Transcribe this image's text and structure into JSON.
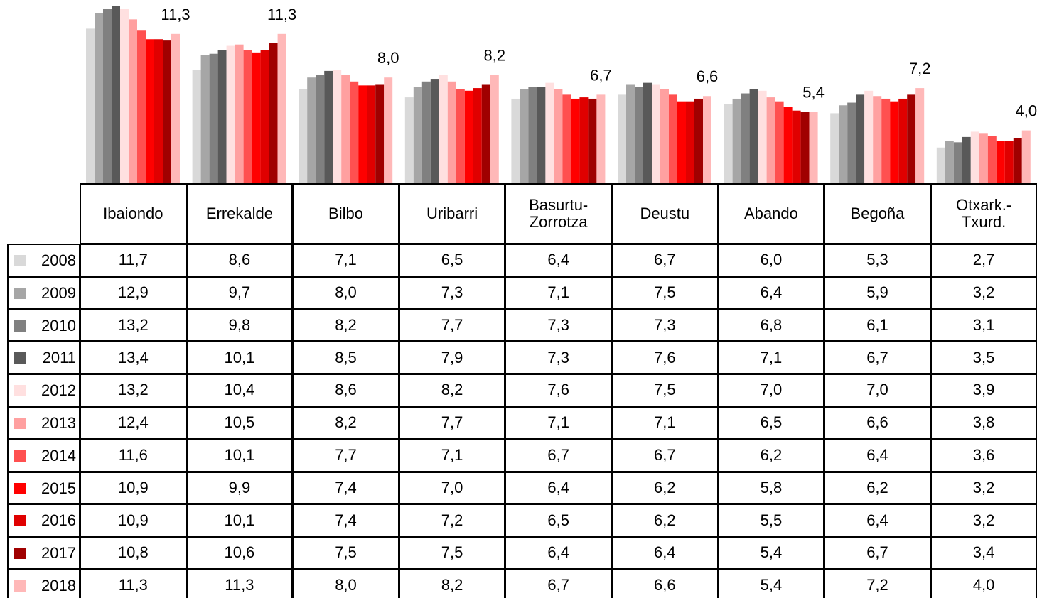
{
  "chart_data": {
    "type": "bar",
    "categories": [
      "Ibaiondo",
      "Errekalde",
      "Bilbo",
      "Uribarri",
      "Basurtu-\nZorrotza",
      "Deustu",
      "Abando",
      "Begoña",
      "Otxark.-\nTxurd."
    ],
    "series": [
      {
        "name": "2008",
        "color": "#d9d9d9",
        "values": [
          11.7,
          8.6,
          7.1,
          6.5,
          6.4,
          6.7,
          6.0,
          5.3,
          2.7
        ],
        "value_labels": [
          "11,7",
          "8,6",
          "7,1",
          "6,5",
          "6,4",
          "6,7",
          "6,0",
          "5,3",
          "2,7"
        ]
      },
      {
        "name": "2009",
        "color": "#a6a6a6",
        "values": [
          12.9,
          9.7,
          8.0,
          7.3,
          7.1,
          7.5,
          6.4,
          5.9,
          3.2
        ],
        "value_labels": [
          "12,9",
          "9,7",
          "8,0",
          "7,3",
          "7,1",
          "7,5",
          "6,4",
          "5,9",
          "3,2"
        ]
      },
      {
        "name": "2010",
        "color": "#808080",
        "values": [
          13.2,
          9.8,
          8.2,
          7.7,
          7.3,
          7.3,
          6.8,
          6.1,
          3.1
        ],
        "value_labels": [
          "13,2",
          "9,8",
          "8,2",
          "7,7",
          "7,3",
          "7,3",
          "6,8",
          "6,1",
          "3,1"
        ]
      },
      {
        "name": "2011",
        "color": "#595959",
        "values": [
          13.4,
          10.1,
          8.5,
          7.9,
          7.3,
          7.6,
          7.1,
          6.7,
          3.5
        ],
        "value_labels": [
          "13,4",
          "10,1",
          "8,5",
          "7,9",
          "7,3",
          "7,6",
          "7,1",
          "6,7",
          "3,5"
        ]
      },
      {
        "name": "2012",
        "color": "#ffe0e0",
        "values": [
          13.2,
          10.4,
          8.6,
          8.2,
          7.6,
          7.5,
          7.0,
          7.0,
          3.9
        ],
        "value_labels": [
          "13,2",
          "10,4",
          "8,6",
          "8,2",
          "7,6",
          "7,5",
          "7,0",
          "7,0",
          "3,9"
        ]
      },
      {
        "name": "2013",
        "color": "#ffa0a0",
        "values": [
          12.4,
          10.5,
          8.2,
          7.7,
          7.1,
          7.1,
          6.5,
          6.6,
          3.8
        ],
        "value_labels": [
          "12,4",
          "10,5",
          "8,2",
          "7,7",
          "7,1",
          "7,1",
          "6,5",
          "6,6",
          "3,8"
        ]
      },
      {
        "name": "2014",
        "color": "#ff5050",
        "values": [
          11.6,
          10.1,
          7.7,
          7.1,
          6.7,
          6.7,
          6.2,
          6.4,
          3.6
        ],
        "value_labels": [
          "11,6",
          "10,1",
          "7,7",
          "7,1",
          "6,7",
          "6,7",
          "6,2",
          "6,4",
          "3,6"
        ]
      },
      {
        "name": "2015",
        "color": "#ff0000",
        "values": [
          10.9,
          9.9,
          7.4,
          7.0,
          6.4,
          6.2,
          5.8,
          6.2,
          3.2
        ],
        "value_labels": [
          "10,9",
          "9,9",
          "7,4",
          "7,0",
          "6,4",
          "6,2",
          "5,8",
          "6,2",
          "3,2"
        ]
      },
      {
        "name": "2016",
        "color": "#e00000",
        "values": [
          10.9,
          10.1,
          7.4,
          7.2,
          6.5,
          6.2,
          5.5,
          6.4,
          3.2
        ],
        "value_labels": [
          "10,9",
          "10,1",
          "7,4",
          "7,2",
          "6,5",
          "6,2",
          "5,5",
          "6,4",
          "3,2"
        ]
      },
      {
        "name": "2017",
        "color": "#a00000",
        "values": [
          10.8,
          10.6,
          7.5,
          7.5,
          6.4,
          6.4,
          5.4,
          6.7,
          3.4
        ],
        "value_labels": [
          "10,8",
          "10,6",
          "7,5",
          "7,5",
          "6,4",
          "6,4",
          "5,4",
          "6,7",
          "3,4"
        ]
      },
      {
        "name": "2018",
        "color": "#ffb8b8",
        "values": [
          11.3,
          11.3,
          8.0,
          8.2,
          6.7,
          6.6,
          5.4,
          7.2,
          4.0
        ],
        "value_labels": [
          "11,3",
          "11,3",
          "8,0",
          "8,2",
          "6,7",
          "6,6",
          "5,4",
          "7,2",
          "4,0"
        ],
        "show_labels": true
      }
    ]
  }
}
